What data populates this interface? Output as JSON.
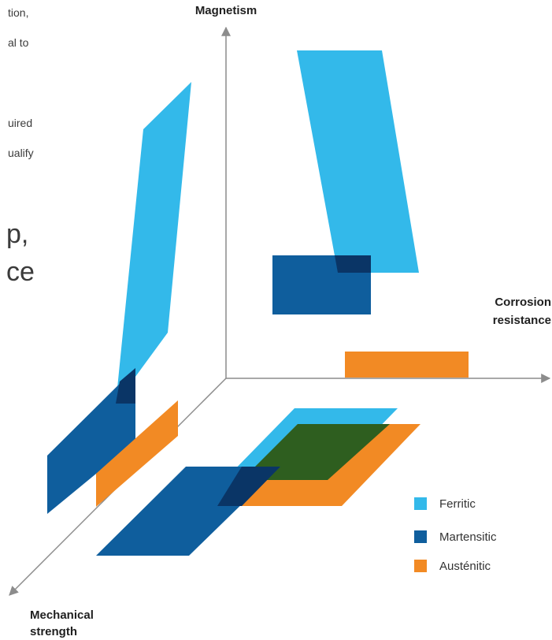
{
  "left_text_fragments": [
    "tion,",
    "al to",
    "uired",
    "ualify"
  ],
  "left_large_fragments": [
    "p,",
    "ce"
  ],
  "axes": {
    "y_label": "Magnetism",
    "x_label_line1": "Corrosion",
    "x_label_line2": "resistance",
    "z_label_line1": "Mechanical",
    "z_label_line2": "strength"
  },
  "legend": [
    {
      "label": "Ferritic",
      "color": "#33b9ea"
    },
    {
      "label": "Martensitic",
      "color": "#0f5e9d"
    },
    {
      "label": "Austénitic",
      "color": "#f28a24"
    }
  ],
  "colors": {
    "ferritic": "#33b9ea",
    "martensitic": "#0f5e9d",
    "austenitic": "#f28a24",
    "overlap_dark": "#0a3566",
    "overlap_green": "#2e5e1f",
    "axis": "#8c8c8c"
  }
}
